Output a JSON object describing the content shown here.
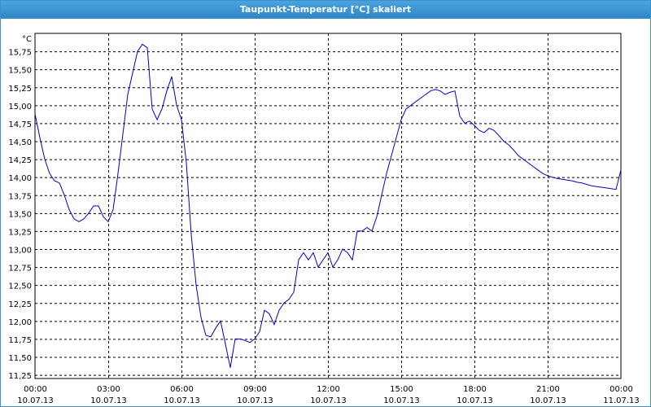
{
  "window": {
    "title": "Taupunkt-Temperatur [°C] skaliert"
  },
  "colors": {
    "title_bar": "#3c8fc9",
    "line": "#0000c8",
    "grid": "#000000"
  },
  "chart_data": {
    "type": "line",
    "title": "Taupunkt-Temperatur [°C] skaliert",
    "unit_label": "°C",
    "grid": true,
    "grid_style": "dashed",
    "xlim": [
      0,
      24
    ],
    "ylim": [
      11.2,
      16.0
    ],
    "y_ticks": [
      "15,75",
      "15,50",
      "15,25",
      "15,00",
      "14,75",
      "14,50",
      "14,25",
      "14,00",
      "13,75",
      "13,50",
      "13,25",
      "13,00",
      "12,75",
      "12,50",
      "12,25",
      "12,00",
      "11,75",
      "11,50",
      "11,25"
    ],
    "x_ticks": [
      {
        "time": "00:00",
        "date": "10.07.13"
      },
      {
        "time": "03:00",
        "date": "10.07.13"
      },
      {
        "time": "06:00",
        "date": "10.07.13"
      },
      {
        "time": "09:00",
        "date": "10.07.13"
      },
      {
        "time": "12:00",
        "date": "10.07.13"
      },
      {
        "time": "15:00",
        "date": "10.07.13"
      },
      {
        "time": "18:00",
        "date": "10.07.13"
      },
      {
        "time": "21:00",
        "date": "10.07.13"
      },
      {
        "time": "00:00",
        "date": "11.07.13"
      }
    ],
    "series": [
      {
        "x": [
          0.0,
          0.2,
          0.4,
          0.6,
          0.8,
          1.0,
          1.2,
          1.4,
          1.6,
          1.8,
          2.0,
          2.2,
          2.4,
          2.6,
          2.8,
          3.0,
          3.2,
          3.4,
          3.6,
          3.8,
          4.0,
          4.2,
          4.4,
          4.6,
          4.8,
          5.0,
          5.2,
          5.4,
          5.6,
          5.8,
          6.0,
          6.2,
          6.4,
          6.6,
          6.8,
          7.0,
          7.2,
          7.4,
          7.6,
          7.8,
          8.0,
          8.2,
          8.4,
          8.6,
          8.8,
          9.0,
          9.2,
          9.4,
          9.6,
          9.8,
          10.0,
          10.2,
          10.4,
          10.6,
          10.8,
          11.0,
          11.2,
          11.4,
          11.6,
          11.8,
          12.0,
          12.2,
          12.4,
          12.6,
          12.8,
          13.0,
          13.2,
          13.4,
          13.6,
          13.8,
          14.0,
          14.2,
          14.4,
          14.6,
          14.8,
          15.0,
          15.2,
          15.4,
          15.6,
          15.8,
          16.0,
          16.2,
          16.4,
          16.6,
          16.8,
          17.0,
          17.2,
          17.4,
          17.6,
          17.8,
          18.0,
          18.2,
          18.4,
          18.6,
          18.8,
          19.0,
          19.2,
          19.4,
          19.6,
          19.8,
          20.0,
          20.2,
          20.4,
          20.6,
          20.8,
          21.0,
          21.2,
          21.4,
          21.6,
          21.8,
          22.0,
          22.2,
          22.4,
          22.6,
          22.8,
          23.0,
          23.2,
          23.4,
          23.6,
          23.8,
          24.0
        ],
        "y": [
          14.88,
          14.55,
          14.25,
          14.05,
          13.95,
          13.92,
          13.75,
          13.55,
          13.42,
          13.38,
          13.42,
          13.5,
          13.6,
          13.6,
          13.45,
          13.38,
          13.55,
          14.05,
          14.6,
          15.15,
          15.45,
          15.75,
          15.85,
          15.8,
          14.95,
          14.8,
          14.95,
          15.2,
          15.4,
          15.0,
          14.8,
          14.2,
          13.2,
          12.5,
          12.05,
          11.8,
          11.78,
          11.9,
          12.0,
          11.68,
          11.35,
          11.75,
          11.75,
          11.73,
          11.7,
          11.75,
          11.85,
          12.15,
          12.1,
          11.95,
          12.15,
          12.25,
          12.3,
          12.4,
          12.85,
          12.95,
          12.85,
          12.95,
          12.75,
          12.85,
          12.95,
          12.75,
          12.85,
          13.0,
          12.95,
          12.85,
          13.25,
          13.25,
          13.3,
          13.25,
          13.45,
          13.75,
          14.05,
          14.3,
          14.55,
          14.8,
          14.95,
          15.0,
          15.05,
          15.1,
          15.15,
          15.2,
          15.22,
          15.2,
          15.15,
          15.18,
          15.2,
          14.85,
          14.75,
          14.78,
          14.72,
          14.65,
          14.62,
          14.68,
          14.65,
          14.58,
          14.5,
          14.45,
          14.38,
          14.3,
          14.25,
          14.2,
          14.15,
          14.1,
          14.05,
          14.02,
          14.0,
          13.98,
          13.97,
          13.96,
          13.95,
          13.93,
          13.92,
          13.9,
          13.88,
          13.87,
          13.86,
          13.85,
          13.84,
          13.83,
          14.1
        ]
      }
    ]
  }
}
